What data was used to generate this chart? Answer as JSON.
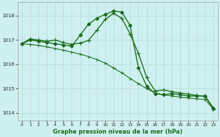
{
  "title": "Graphe pression niveau de la mer (hPa)",
  "background_color": "#cff0f0",
  "grid_color": "#b8ddd8",
  "line_color": "#1a6b1a",
  "x_ticks": [
    0,
    1,
    2,
    3,
    4,
    5,
    6,
    7,
    8,
    9,
    10,
    11,
    12,
    13,
    14,
    15,
    16,
    17,
    18,
    19,
    20,
    21,
    22,
    23
  ],
  "y_ticks": [
    1014,
    1015,
    1016,
    1017,
    1018
  ],
  "ylim": [
    1013.7,
    1018.55
  ],
  "xlim": [
    -0.5,
    23.5
  ],
  "series": [
    {
      "x": [
        0,
        1,
        2,
        3,
        4,
        5,
        6,
        7,
        8,
        9,
        10,
        11,
        12,
        13,
        14,
        15,
        16,
        17,
        18,
        19,
        20,
        21,
        22,
        23
      ],
      "y": [
        1016.85,
        1017.0,
        1016.95,
        1016.9,
        1016.85,
        1016.8,
        1016.75,
        1017.2,
        1017.65,
        1017.9,
        1018.05,
        1018.2,
        1018.15,
        1017.6,
        1015.85,
        1015.1,
        1014.8,
        1014.75,
        1014.8,
        1014.75,
        1014.7,
        1014.7,
        1014.7,
        1014.2
      ],
      "marker": "D",
      "markersize": 2.5,
      "linewidth": 1.0
    },
    {
      "x": [
        0,
        1,
        2,
        3,
        4,
        5,
        6,
        7,
        8,
        9,
        10,
        11,
        12,
        13,
        14,
        15,
        16,
        17,
        18,
        19,
        20,
        21,
        22,
        23
      ],
      "y": [
        1016.85,
        1017.05,
        1017.0,
        1016.95,
        1017.0,
        1016.9,
        1016.82,
        1016.88,
        1016.98,
        1017.4,
        1017.85,
        1018.1,
        1017.9,
        1017.25,
        1016.45,
        1015.45,
        1014.9,
        1014.95,
        1014.88,
        1014.82,
        1014.78,
        1014.72,
        1014.68,
        1014.18
      ],
      "marker": "+",
      "markersize": 4.5,
      "linewidth": 1.0
    },
    {
      "x": [
        0,
        1,
        2,
        3,
        4,
        5,
        6,
        7,
        8,
        9,
        10,
        11,
        12,
        13,
        14,
        15,
        16,
        17,
        18,
        19,
        20,
        21,
        22,
        23
      ],
      "y": [
        1016.85,
        1016.82,
        1016.78,
        1016.72,
        1016.65,
        1016.58,
        1016.5,
        1016.42,
        1016.32,
        1016.2,
        1016.05,
        1015.85,
        1015.65,
        1015.42,
        1015.2,
        1015.0,
        1014.82,
        1014.75,
        1014.7,
        1014.65,
        1014.62,
        1014.58,
        1014.55,
        1014.15
      ],
      "marker": "4",
      "markersize": 4,
      "linewidth": 0.8
    }
  ]
}
